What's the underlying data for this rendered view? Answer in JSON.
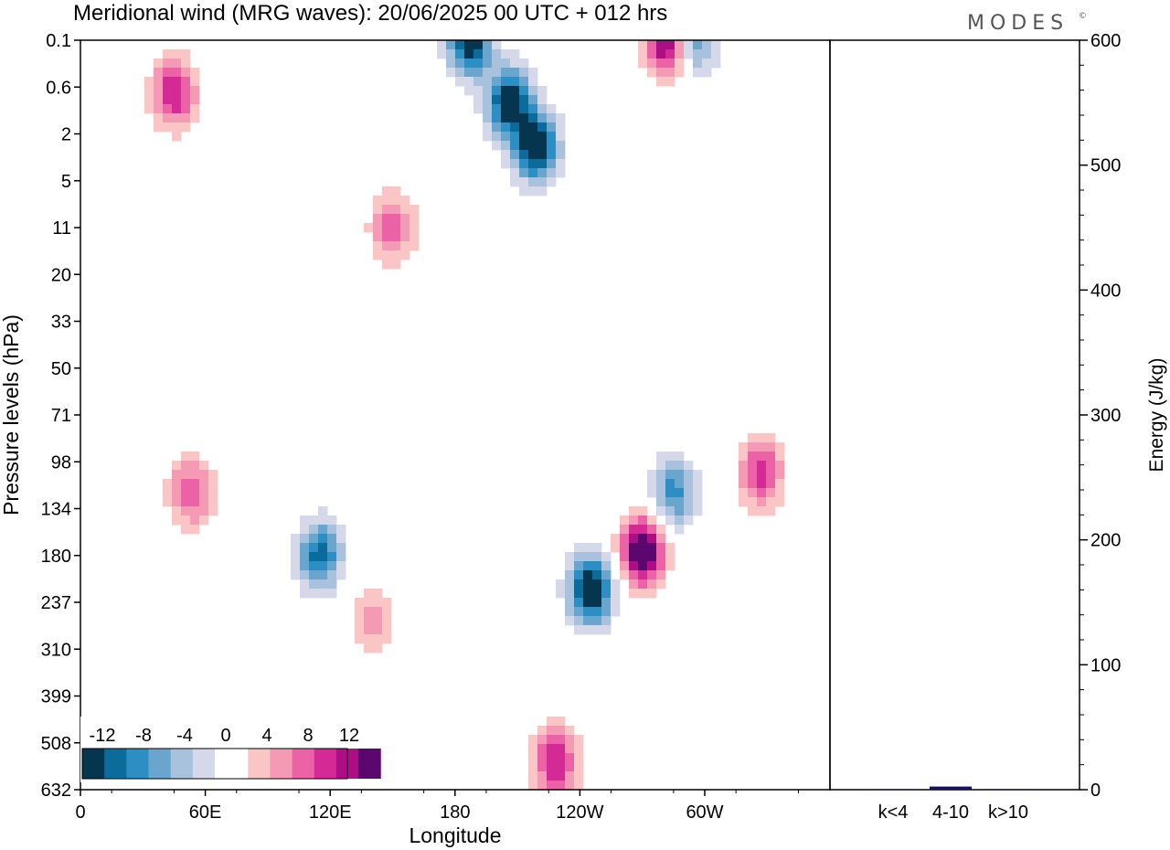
{
  "header": {
    "title": "Meridional wind (MRG waves):  20/06/2025  00 UTC  + 012 hrs",
    "logo": "MODES",
    "logo_mark": "©"
  },
  "colors": {
    "neg": [
      "#06364f",
      "#0b6c9b",
      "#2d8ec4",
      "#6aa5cd",
      "#a8c2de",
      "#d4d8e8"
    ],
    "zero": "#ffffff",
    "pos": [
      "#f9c5c5",
      "#f59ab4",
      "#ec62a6",
      "#d42a95",
      "#ad0e85",
      "#5c0770"
    ],
    "bar": "#10106b"
  },
  "chart_data": [
    {
      "type": "heatmap",
      "title": "Meridional wind (MRG waves):  20/06/2025  00 UTC  + 012 hrs",
      "xlabel": "Longitude",
      "ylabel": "Pressure levels (hPa)",
      "x_ticks": [
        "0",
        "60E",
        "120E",
        "180",
        "120W",
        "60W"
      ],
      "y_ticks": [
        "0.1",
        "0.6",
        "2",
        "5",
        "11",
        "20",
        "33",
        "50",
        "71",
        "98",
        "134",
        "180",
        "237",
        "310",
        "399",
        "508",
        "632"
      ],
      "colorbar": {
        "labels": [
          "-12",
          "-8",
          "-4",
          "0",
          "4",
          "8",
          "12"
        ],
        "levels": [
          -14,
          -12,
          -10,
          -8,
          -6,
          -4,
          -2,
          2,
          4,
          6,
          8,
          10,
          12,
          14
        ]
      },
      "features": [
        {
          "lon": 187,
          "p": 0.1,
          "value": -14
        },
        {
          "lon": 206,
          "p": 0.9,
          "value": -14
        },
        {
          "lon": 219,
          "p": 2.6,
          "value": -14
        },
        {
          "lon": 282,
          "p": 0.1,
          "value": 14
        },
        {
          "lon": 295,
          "p": 0.1,
          "value": -9
        },
        {
          "lon": 45,
          "p": 0.7,
          "value": 10
        },
        {
          "lon": 150,
          "p": 11,
          "value": 7
        },
        {
          "lon": 115,
          "p": 180,
          "value": -11
        },
        {
          "lon": 245,
          "p": 220,
          "value": -15
        },
        {
          "lon": 270,
          "p": 175,
          "value": 15
        },
        {
          "lon": 285,
          "p": 120,
          "value": -9
        },
        {
          "lon": 327,
          "p": 105,
          "value": 9
        },
        {
          "lon": 228,
          "p": 555,
          "value": 10
        },
        {
          "lon": 140,
          "p": 260,
          "value": 5
        },
        {
          "lon": 53,
          "p": 120,
          "value": 8
        }
      ]
    },
    {
      "type": "bar",
      "categories": [
        "k<4",
        "4-10",
        "k>10"
      ],
      "values": [
        0.5,
        2.5,
        0.5
      ],
      "ylabel": "Energy (J/kg)",
      "ylim": [
        0,
        600
      ],
      "y_ticks": [
        "0",
        "100",
        "200",
        "300",
        "400",
        "500",
        "600"
      ]
    }
  ]
}
